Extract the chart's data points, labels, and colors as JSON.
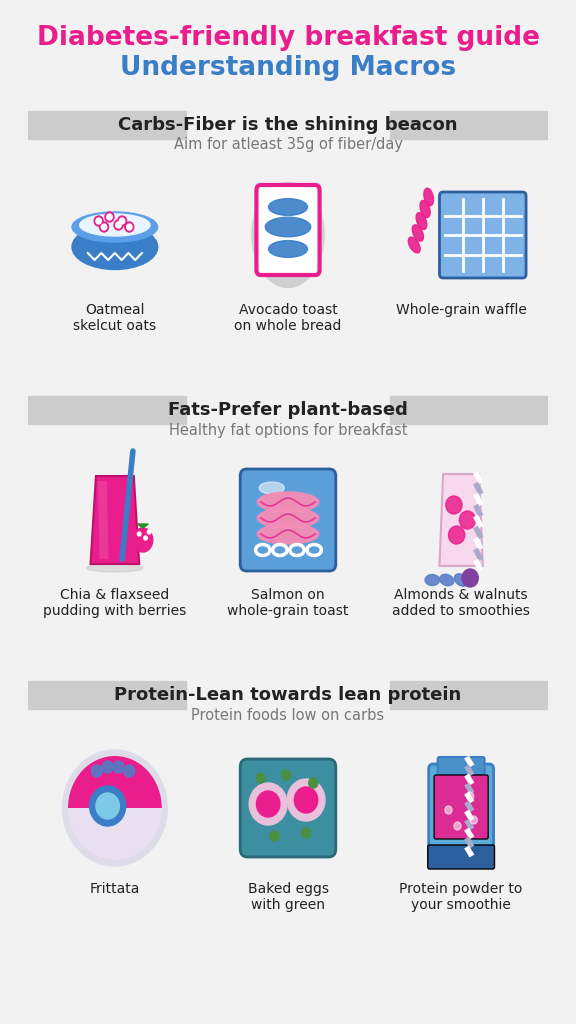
{
  "title_line1": "Diabetes-friendly breakfast guide",
  "title_line2": "Understanding Macros",
  "title_color1": "#E91E8C",
  "title_color2": "#3B7EC8",
  "bg_color": "#F2F2F2",
  "section_bg": "#CCCCCC",
  "sections": [
    {
      "title": "Carbs-Fiber is the shining beacon",
      "subtitle": "Aim for atleast 35g of fiber/day",
      "items": [
        {
          "label": "Oatmeal\nskelcut oats"
        },
        {
          "label": "Avocado toast\non whole bread"
        },
        {
          "label": "Whole-grain waffle"
        }
      ]
    },
    {
      "title": "Fats-Prefer plant-based",
      "subtitle": "Healthy fat options for breakfast",
      "items": [
        {
          "label": "Chia & flaxseed\npudding with berries"
        },
        {
          "label": "Salmon on\nwhole-grain toast"
        },
        {
          "label": "Almonds & walnuts\nadded to smoothies"
        }
      ]
    },
    {
      "title": "Protein-Lean towards lean protein",
      "subtitle": "Protein foods low on carbs",
      "items": [
        {
          "label": "Frittata"
        },
        {
          "label": "Baked eggs\nwith green"
        },
        {
          "label": "Protein powder to\nyour smoothie"
        }
      ]
    }
  ],
  "pink": "#E91E8C",
  "blue": "#3B7EC8",
  "light_blue": "#7FB3E8",
  "dark_blue": "#2C5F9E",
  "text_dark": "#222222",
  "text_gray": "#777777",
  "light_pink": "#F48CB6"
}
